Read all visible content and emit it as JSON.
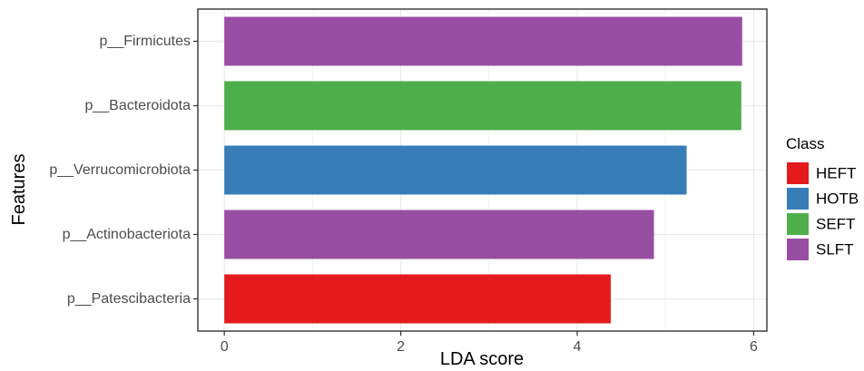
{
  "chart_data": {
    "type": "bar",
    "orientation": "horizontal",
    "categories": [
      "p__Firmicutes",
      "p__Bacteroidota",
      "p__Verrucomicrobiota",
      "p__Actinobacteriota",
      "p__Patescibacteria"
    ],
    "values": [
      5.87,
      5.86,
      5.24,
      4.87,
      4.38
    ],
    "classes": [
      "SLFT",
      "SEFT",
      "HOTB",
      "SLFT",
      "HEFT"
    ],
    "xlabel": "LDA score",
    "ylabel": "Features",
    "xlim": [
      -0.3,
      6.15
    ],
    "xticks": [
      0,
      2,
      4,
      6
    ],
    "grid": true,
    "legend": {
      "title": "Class",
      "position": "right",
      "entries": [
        {
          "label": "HEFT",
          "color": "#E41A1C"
        },
        {
          "label": "HOTB",
          "color": "#377EB8"
        },
        {
          "label": "SEFT",
          "color": "#4DAF4A"
        },
        {
          "label": "SLFT",
          "color": "#984EA3"
        }
      ]
    }
  }
}
